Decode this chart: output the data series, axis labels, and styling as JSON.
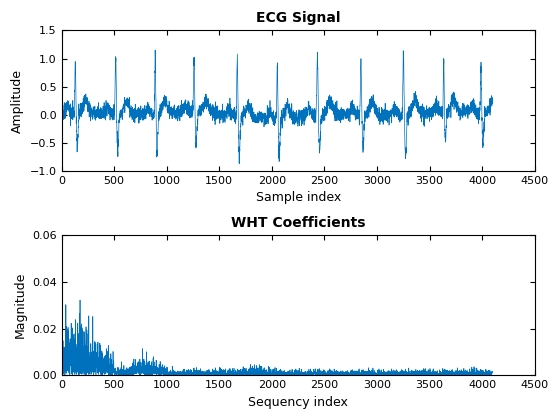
{
  "title1": "ECG Signal",
  "title2": "WHT Coefficients",
  "xlabel1": "Sample index",
  "ylabel1": "Amplitude",
  "xlabel2": "Sequency index",
  "ylabel2": "Magnitude",
  "xlim": [
    0,
    4500
  ],
  "ylim1": [
    -1.0,
    1.5
  ],
  "ylim2": [
    0,
    0.06
  ],
  "yticks1": [
    -1.0,
    -0.5,
    0.0,
    0.5,
    1.0,
    1.5
  ],
  "yticks2": [
    0,
    0.02,
    0.04,
    0.06
  ],
  "xticks": [
    0,
    500,
    1000,
    1500,
    2000,
    2500,
    3000,
    3500,
    4000,
    4500
  ],
  "line_color": "#0072BD",
  "line_width": 0.5,
  "bg_color": "#FFFFFF",
  "n_samples": 4096,
  "figsize": [
    5.6,
    4.2
  ],
  "dpi": 100
}
